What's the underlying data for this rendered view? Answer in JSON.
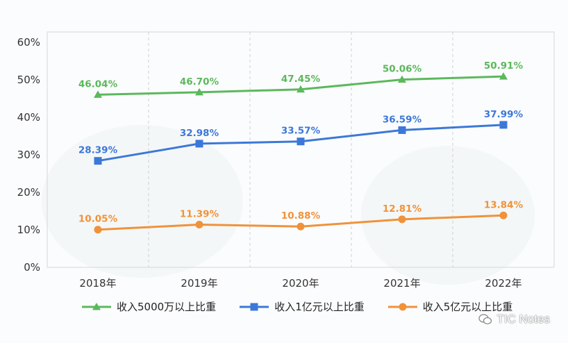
{
  "chart_data": {
    "type": "line",
    "title": "",
    "xlabel": "",
    "ylabel": "",
    "categories": [
      "2018年",
      "2019年",
      "2020年",
      "2021年",
      "2022年"
    ],
    "y_ticks": [
      "0%",
      "10%",
      "20%",
      "30%",
      "40%",
      "50%",
      "60%"
    ],
    "ylim": [
      0,
      60
    ],
    "grid": "vertical dashed",
    "legend_position": "bottom",
    "series": [
      {
        "name": "收入5000万以上比重",
        "color": "#5cb85c",
        "marker": "triangle",
        "values": [
          46.04,
          46.7,
          47.45,
          50.06,
          50.91
        ],
        "labels": [
          "46.04%",
          "46.70%",
          "47.45%",
          "50.06%",
          "50.91%"
        ]
      },
      {
        "name": "收入1亿元以上比重",
        "color": "#3b78d8",
        "marker": "square",
        "values": [
          28.39,
          32.98,
          33.57,
          36.59,
          37.99
        ],
        "labels": [
          "28.39%",
          "32.98%",
          "33.57%",
          "36.59%",
          "37.99%"
        ]
      },
      {
        "name": "收入5亿元以上比重",
        "color": "#f0923a",
        "marker": "circle",
        "values": [
          10.05,
          11.39,
          10.88,
          12.81,
          13.84
        ],
        "labels": [
          "10.05%",
          "11.39%",
          "10.88%",
          "12.81%",
          "13.84%"
        ]
      }
    ]
  },
  "watermark": {
    "text": "TIC Notes",
    "icon": "wechat-icon"
  }
}
